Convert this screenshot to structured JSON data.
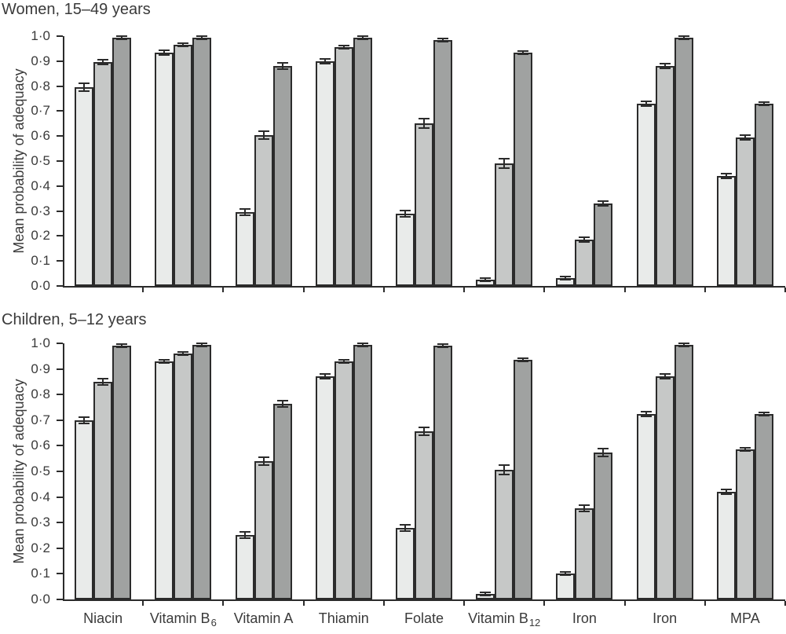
{
  "figure": {
    "background_color": "#ffffff",
    "text_color": "#3a3a3a",
    "axis_color": "#2b2b2b"
  },
  "chart_data": [
    {
      "type": "bar",
      "panel": "top",
      "title": "Women, 15–49 years",
      "ylabel": "Mean probability of adequacy",
      "xlabel": "",
      "ylim": [
        0.0,
        1.0
      ],
      "ytick_labels": [
        "0·0",
        "0·1",
        "0·2",
        "0·3",
        "0·4",
        "0·5",
        "0·6",
        "0·7",
        "0·8",
        "0·9",
        "1·0"
      ],
      "grid": false,
      "legend": "none",
      "error_bars": true,
      "categories": [
        {
          "label": "Niacin",
          "sub": ""
        },
        {
          "label": "Vitamin B",
          "sub": "6"
        },
        {
          "label": "Vitamin A",
          "sub": ""
        },
        {
          "label": "Thiamin",
          "sub": ""
        },
        {
          "label": "Folate",
          "sub": ""
        },
        {
          "label": "Vitamin B",
          "sub": "12"
        },
        {
          "label": "Iron",
          "sub": ""
        },
        {
          "label": "Iron",
          "sub": ""
        },
        {
          "label": "MPA",
          "sub": ""
        }
      ],
      "series": [
        {
          "name": "light-grey",
          "color": "#e9ebea",
          "values": [
            0.795,
            0.935,
            0.295,
            0.9,
            0.29,
            0.025,
            0.03,
            0.73,
            0.44
          ],
          "errors": [
            0.015,
            0.008,
            0.013,
            0.008,
            0.012,
            0.004,
            0.004,
            0.01,
            0.01
          ]
        },
        {
          "name": "mid-grey",
          "color": "#c6c8c7",
          "values": [
            0.895,
            0.965,
            0.605,
            0.955,
            0.65,
            0.49,
            0.185,
            0.88,
            0.595
          ],
          "errors": [
            0.01,
            0.005,
            0.015,
            0.006,
            0.018,
            0.018,
            0.008,
            0.008,
            0.008
          ]
        },
        {
          "name": "dark-grey",
          "color": "#a0a2a1",
          "values": [
            0.995,
            0.995,
            0.88,
            0.995,
            0.985,
            0.935,
            0.33,
            0.995,
            0.73
          ],
          "errors": [
            0.004,
            0.002,
            0.012,
            0.002,
            0.004,
            0.006,
            0.01,
            0.002,
            0.006
          ]
        }
      ]
    },
    {
      "type": "bar",
      "panel": "bottom",
      "title": "Children, 5–12 years",
      "ylabel": "Mean probability of adequacy",
      "xlabel": "",
      "ylim": [
        0.0,
        1.0
      ],
      "ytick_labels": [
        "0·0",
        "0·1",
        "0·2",
        "0·3",
        "0·4",
        "0·5",
        "0·6",
        "0·7",
        "0·8",
        "0·9",
        "1·0"
      ],
      "grid": false,
      "legend": "none",
      "error_bars": true,
      "categories": [
        {
          "label": "Niacin",
          "sub": ""
        },
        {
          "label": "Vitamin B",
          "sub": "6"
        },
        {
          "label": "Vitamin A",
          "sub": ""
        },
        {
          "label": "Thiamin",
          "sub": ""
        },
        {
          "label": "Folate",
          "sub": ""
        },
        {
          "label": "Vitamin B",
          "sub": "12"
        },
        {
          "label": "Iron",
          "sub": ""
        },
        {
          "label": "Iron",
          "sub": ""
        },
        {
          "label": "MPA",
          "sub": ""
        }
      ],
      "series": [
        {
          "name": "light-grey",
          "color": "#e9ebea",
          "values": [
            0.7,
            0.93,
            0.25,
            0.87,
            0.28,
            0.02,
            0.1,
            0.725,
            0.42
          ],
          "errors": [
            0.013,
            0.007,
            0.013,
            0.01,
            0.013,
            0.004,
            0.007,
            0.01,
            0.01
          ]
        },
        {
          "name": "mid-grey",
          "color": "#c6c8c7",
          "values": [
            0.85,
            0.96,
            0.54,
            0.93,
            0.655,
            0.505,
            0.355,
            0.87,
            0.585
          ],
          "errors": [
            0.012,
            0.005,
            0.015,
            0.007,
            0.015,
            0.018,
            0.012,
            0.01,
            0.007
          ]
        },
        {
          "name": "dark-grey",
          "color": "#a0a2a1",
          "values": [
            0.99,
            0.995,
            0.765,
            0.995,
            0.99,
            0.935,
            0.575,
            0.995,
            0.725
          ],
          "errors": [
            0.004,
            0.002,
            0.012,
            0.002,
            0.005,
            0.007,
            0.015,
            0.002,
            0.004
          ]
        }
      ]
    }
  ]
}
